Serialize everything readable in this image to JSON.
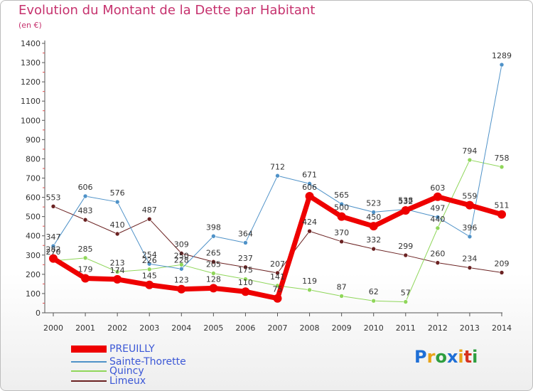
{
  "title": "Evolution du Montant de la Dette par Habitant",
  "subtitle": "(en €)",
  "logo": {
    "text": "Proxiti",
    "colors": [
      "#1f6fd6",
      "#e8a317",
      "#2e9e3f",
      "#1f6fd6",
      "#e8a317",
      "#d6331f",
      "#2e9e3f"
    ]
  },
  "chart_data": {
    "type": "line",
    "x": [
      "2000",
      "2001",
      "2002",
      "2003",
      "2004",
      "2005",
      "2006",
      "2007",
      "2008",
      "2009",
      "2010",
      "2011",
      "2012",
      "2013",
      "2014"
    ],
    "ylim": [
      0,
      1400
    ],
    "yticks": [
      0,
      100,
      200,
      300,
      400,
      500,
      600,
      700,
      800,
      900,
      1000,
      1100,
      1200,
      1300,
      1400
    ],
    "grid": false,
    "legend_position": "bottom-left",
    "series": [
      {
        "name": "PREUILLY",
        "color": "#ee0000",
        "width": 7,
        "values": [
          282,
          179,
          174,
          145,
          123,
          128,
          110,
          75,
          606,
          500,
          450,
          532,
          603,
          559,
          511
        ]
      },
      {
        "name": "Sainte-Thorette",
        "color": "#4f92c8",
        "width": 1,
        "values": [
          347,
          606,
          576,
          254,
          228,
          398,
          364,
          712,
          671,
          565,
          523,
          538,
          497,
          396,
          1289
        ]
      },
      {
        "name": "Quincy",
        "color": "#8fd65a",
        "width": 1,
        "values": [
          270,
          285,
          213,
          226,
          250,
          205,
          175,
          141,
          119,
          87,
          62,
          57,
          440,
          794,
          758
        ]
      },
      {
        "name": "Limeux",
        "color": "#6b2222",
        "width": 1,
        "values": [
          553,
          483,
          410,
          487,
          309,
          265,
          237,
          207,
          424,
          370,
          332,
          299,
          260,
          234,
          209
        ]
      }
    ]
  }
}
